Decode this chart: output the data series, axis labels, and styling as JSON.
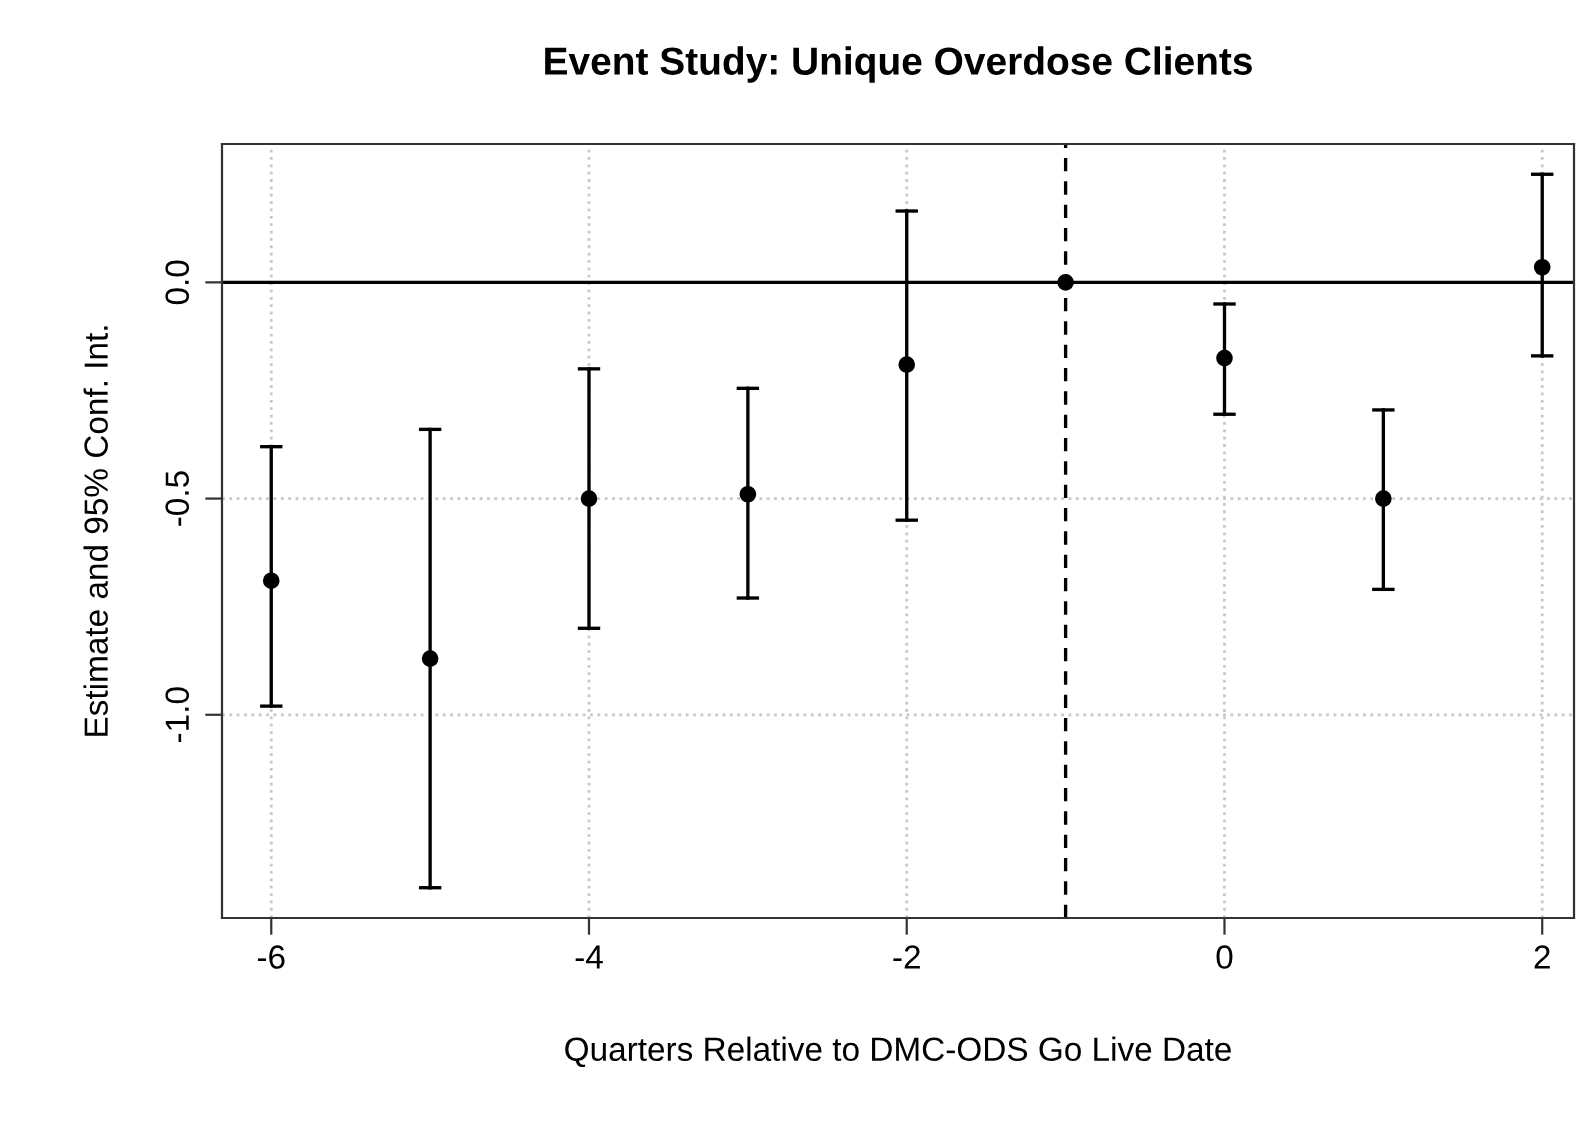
{
  "chart_data": {
    "type": "scatter",
    "title": "Event Study: Unique Overdose Clients",
    "xlabel": "Quarters Relative to DMC-ODS Go Live Date",
    "ylabel": "Estimate and 95% Conf. Int.",
    "x": [
      -6,
      -5,
      -4,
      -3,
      -2,
      -1,
      0,
      1,
      2
    ],
    "values": [
      -0.69,
      -0.87,
      -0.5,
      -0.49,
      -0.19,
      0.0,
      -0.175,
      -0.5,
      0.035
    ],
    "errors": [
      [
        -0.98,
        -0.38
      ],
      [
        -1.4,
        -0.34
      ],
      [
        -0.8,
        -0.2
      ],
      [
        -0.73,
        -0.245
      ],
      [
        -0.55,
        0.165
      ],
      null,
      [
        -0.305,
        -0.05
      ],
      [
        -0.71,
        -0.295
      ],
      [
        -0.17,
        0.25
      ]
    ],
    "color": "#000000",
    "marker": "circle",
    "xlim": [
      -6.31,
      2.2
    ],
    "ylim": [
      -1.47,
      0.32
    ],
    "xticks": [
      -6,
      -4,
      -2,
      0,
      2
    ],
    "yticks": [
      {
        "value": 0,
        "label": "0.0"
      },
      {
        "value": -0.5,
        "label": "-0.5"
      },
      {
        "value": -1,
        "label": "-1.0"
      }
    ],
    "grid": true,
    "ref_lines": [
      {
        "axis": "y",
        "value": 0,
        "line_style": "solid"
      },
      {
        "axis": "x",
        "value": -1,
        "line_style": "dashed"
      }
    ]
  }
}
